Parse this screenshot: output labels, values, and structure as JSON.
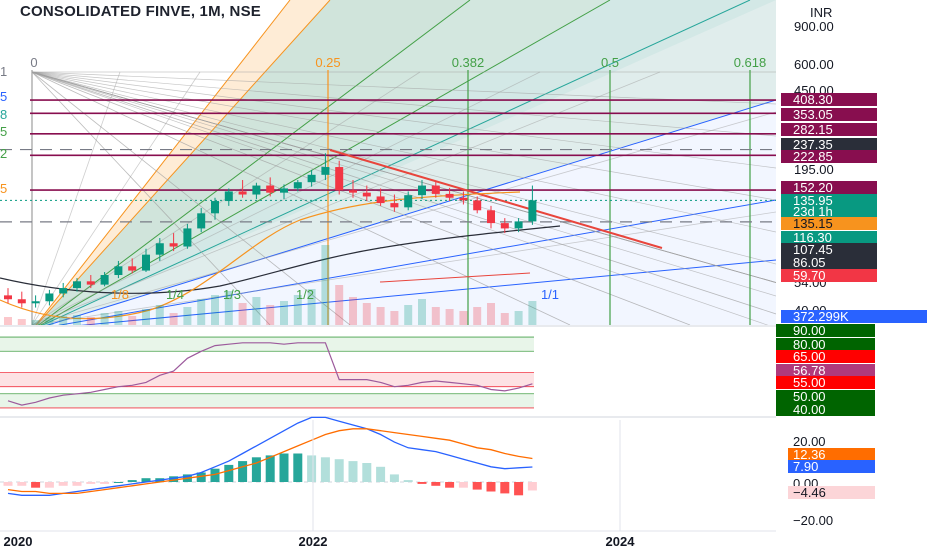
{
  "header": {
    "title": "CONSOLIDATED FINVE, 1M, NSE",
    "currency": "INR"
  },
  "colors": {
    "up": "#089981",
    "down": "#f23645",
    "sma_line": "#e8453c",
    "macd_line": "#2962ff",
    "signal_line": "#ff6d00",
    "rsi_line": "#9c5a9c",
    "fib_orange": "#f7931e",
    "fib_green": "#43a047",
    "fib_teal": "#26a69a"
  },
  "price_scale": {
    "labels": [
      "900.00",
      "600.00",
      "450.00",
      "195.00",
      "54.00",
      "40.00"
    ]
  },
  "price_tags": [
    {
      "text": "408.30",
      "bg": "#880e4f",
      "fg": "#ffffff"
    },
    {
      "text": "353.05",
      "bg": "#880e4f",
      "fg": "#ffffff"
    },
    {
      "text": "282.15",
      "bg": "#880e4f",
      "fg": "#ffffff"
    },
    {
      "text": "237.35",
      "bg": "#2a2e39",
      "fg": "#ffffff"
    },
    {
      "text": "222.85",
      "bg": "#880e4f",
      "fg": "#ffffff"
    },
    {
      "text": "152.20",
      "bg": "#880e4f",
      "fg": "#ffffff"
    },
    {
      "text": "135.95",
      "bg": "#089981",
      "fg": "#ffffff"
    },
    {
      "text": "23d 1h",
      "bg": "#089981",
      "fg": "#ffffff"
    },
    {
      "text": "135.15",
      "bg": "#f7931e",
      "fg": "#131722"
    },
    {
      "text": "116.30",
      "bg": "#089981",
      "fg": "#ffffff"
    },
    {
      "text": "107.45",
      "bg": "#2a2e39",
      "fg": "#ffffff"
    },
    {
      "text": "86.05",
      "bg": "#2a2e39",
      "fg": "#ffffff"
    },
    {
      "text": "59.70",
      "bg": "#f23645",
      "fg": "#ffffff"
    },
    {
      "text": "372.299K",
      "bg": "#2962ff",
      "fg": "#ffffff"
    }
  ],
  "fib_labels": {
    "top": [
      "0",
      "0.25",
      "0.382",
      "0.5",
      "0.618"
    ],
    "bottom": [
      "1/8",
      "1/4",
      "1/3",
      "1/2",
      "1/1"
    ],
    "left_edge": [
      "1",
      "5",
      "8",
      "5",
      "2",
      "5"
    ]
  },
  "rsi_scale": {
    "tags": [
      {
        "text": "90.00",
        "bg": "#006400",
        "fg": "#ffffff"
      },
      {
        "text": "80.00",
        "bg": "#006400",
        "fg": "#ffffff"
      },
      {
        "text": "65.00",
        "bg": "#ff0000",
        "fg": "#ffffff"
      },
      {
        "text": "56.78",
        "bg": "#b03a7c",
        "fg": "#ffffff"
      },
      {
        "text": "55.00",
        "bg": "#ff0000",
        "fg": "#ffffff"
      },
      {
        "text": "50.00",
        "bg": "#006400",
        "fg": "#ffffff"
      },
      {
        "text": "40.00",
        "bg": "#006400",
        "fg": "#ffffff"
      }
    ]
  },
  "macd_scale": {
    "labels": [
      "20.00",
      "0.00",
      "−20.00"
    ],
    "tags": [
      {
        "text": "12.36",
        "bg": "#ff6d00",
        "fg": "#ffffff"
      },
      {
        "text": "7.90",
        "bg": "#2962ff",
        "fg": "#ffffff"
      },
      {
        "text": "−4.46",
        "bg": "#fcd5d8",
        "fg": "#131722"
      }
    ]
  },
  "time_axis": {
    "labels": [
      "2020",
      "2022",
      "2024"
    ]
  },
  "chart_data": {
    "type": "candlestick",
    "title": "CONSOLIDATED FINVE, 1M, NSE",
    "interval": "1M",
    "y_scale": "log",
    "ylim": [
      40,
      900
    ],
    "x_range": [
      "2020-01",
      "2024-06"
    ],
    "candles": [
      {
        "o": 48,
        "h": 52,
        "l": 44,
        "c": 46
      },
      {
        "o": 46,
        "h": 50,
        "l": 42,
        "c": 44
      },
      {
        "o": 44,
        "h": 48,
        "l": 42,
        "c": 45
      },
      {
        "o": 45,
        "h": 51,
        "l": 43,
        "c": 49
      },
      {
        "o": 49,
        "h": 55,
        "l": 47,
        "c": 52
      },
      {
        "o": 52,
        "h": 58,
        "l": 50,
        "c": 56
      },
      {
        "o": 56,
        "h": 60,
        "l": 52,
        "c": 54
      },
      {
        "o": 54,
        "h": 62,
        "l": 53,
        "c": 60
      },
      {
        "o": 60,
        "h": 70,
        "l": 58,
        "c": 66
      },
      {
        "o": 66,
        "h": 72,
        "l": 61,
        "c": 63
      },
      {
        "o": 63,
        "h": 80,
        "l": 62,
        "c": 75
      },
      {
        "o": 75,
        "h": 90,
        "l": 70,
        "c": 85
      },
      {
        "o": 85,
        "h": 95,
        "l": 78,
        "c": 82
      },
      {
        "o": 82,
        "h": 105,
        "l": 80,
        "c": 100
      },
      {
        "o": 100,
        "h": 125,
        "l": 96,
        "c": 118
      },
      {
        "o": 118,
        "h": 140,
        "l": 110,
        "c": 135
      },
      {
        "o": 135,
        "h": 155,
        "l": 128,
        "c": 150
      },
      {
        "o": 150,
        "h": 170,
        "l": 140,
        "c": 145
      },
      {
        "o": 145,
        "h": 165,
        "l": 138,
        "c": 160
      },
      {
        "o": 160,
        "h": 175,
        "l": 142,
        "c": 148
      },
      {
        "o": 148,
        "h": 162,
        "l": 138,
        "c": 155
      },
      {
        "o": 155,
        "h": 170,
        "l": 150,
        "c": 166
      },
      {
        "o": 166,
        "h": 190,
        "l": 158,
        "c": 180
      },
      {
        "o": 180,
        "h": 228,
        "l": 170,
        "c": 196
      },
      {
        "o": 196,
        "h": 210,
        "l": 145,
        "c": 152
      },
      {
        "o": 152,
        "h": 170,
        "l": 140,
        "c": 148
      },
      {
        "o": 148,
        "h": 160,
        "l": 135,
        "c": 142
      },
      {
        "o": 142,
        "h": 155,
        "l": 128,
        "c": 132
      },
      {
        "o": 132,
        "h": 145,
        "l": 120,
        "c": 126
      },
      {
        "o": 126,
        "h": 150,
        "l": 122,
        "c": 144
      },
      {
        "o": 144,
        "h": 170,
        "l": 138,
        "c": 160
      },
      {
        "o": 160,
        "h": 168,
        "l": 140,
        "c": 146
      },
      {
        "o": 146,
        "h": 156,
        "l": 135,
        "c": 140
      },
      {
        "o": 140,
        "h": 150,
        "l": 130,
        "c": 136
      },
      {
        "o": 136,
        "h": 142,
        "l": 118,
        "c": 122
      },
      {
        "o": 122,
        "h": 128,
        "l": 100,
        "c": 106
      },
      {
        "o": 106,
        "h": 112,
        "l": 95,
        "c": 100
      },
      {
        "o": 100,
        "h": 112,
        "l": 96,
        "c": 108
      },
      {
        "o": 108,
        "h": 160,
        "l": 104,
        "c": 136
      }
    ],
    "rsi": {
      "current": 56.78
    },
    "macd": {
      "macd": 7.9,
      "signal": 12.36,
      "histogram": -4.46
    },
    "volume": {
      "current": "372.299K"
    }
  }
}
